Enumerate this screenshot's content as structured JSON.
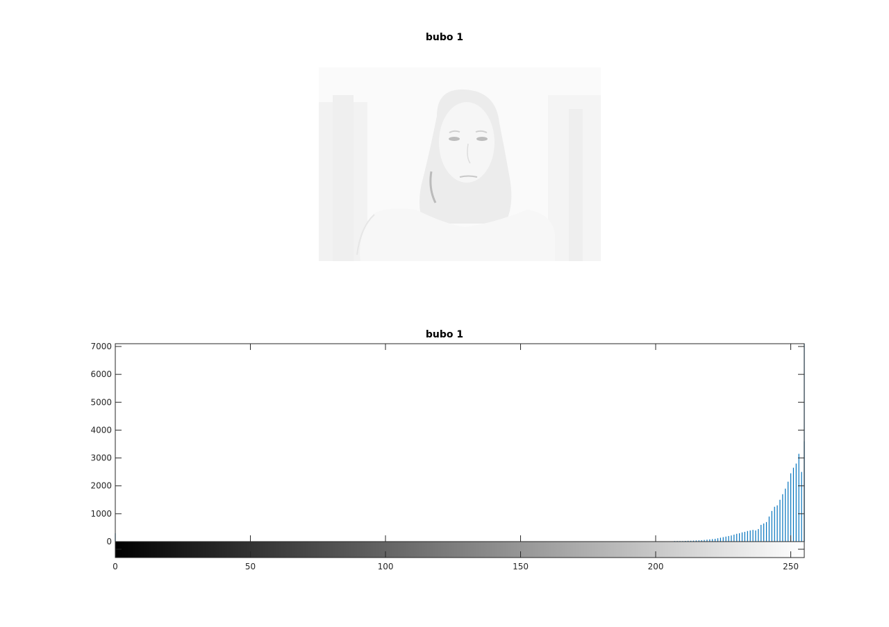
{
  "figure": {
    "image_title": "bubo 1",
    "hist_title": "bubo 1"
  },
  "chart_data": {
    "type": "bar",
    "title": "bubo 1",
    "xlabel": "",
    "ylabel": "",
    "xlim": [
      0,
      255
    ],
    "ylim": [
      -580,
      7100
    ],
    "x_ticks": [
      0,
      50,
      100,
      150,
      200,
      250
    ],
    "y_ticks": [
      0,
      1000,
      2000,
      3000,
      4000,
      5000,
      6000,
      7000
    ],
    "x_tick_labels": [
      "0",
      "50",
      "100",
      "150",
      "200",
      "250"
    ],
    "y_tick_labels": [
      "0",
      "1000",
      "2000",
      "3000",
      "4000",
      "5000",
      "6000",
      "7000"
    ],
    "colorbar": {
      "from": "#000000",
      "to": "#ffffff",
      "range": [
        0,
        255
      ]
    },
    "series": [
      {
        "color": "#0072bd",
        "x": [
          0,
          207,
          208,
          209,
          210,
          211,
          212,
          213,
          214,
          215,
          216,
          217,
          218,
          219,
          220,
          221,
          222,
          223,
          224,
          225,
          226,
          227,
          228,
          229,
          230,
          231,
          232,
          233,
          234,
          235,
          236,
          237,
          238,
          239,
          240,
          241,
          242,
          243,
          244,
          245,
          246,
          247,
          248,
          249,
          250,
          251,
          252,
          253,
          254,
          255
        ],
        "values": [
          300,
          20,
          20,
          20,
          20,
          25,
          30,
          30,
          35,
          40,
          45,
          50,
          60,
          70,
          80,
          90,
          100,
          120,
          140,
          160,
          180,
          200,
          220,
          250,
          280,
          300,
          330,
          350,
          380,
          400,
          420,
          400,
          450,
          600,
          650,
          700,
          900,
          1100,
          1250,
          1300,
          1500,
          1700,
          1900,
          2150,
          2450,
          2650,
          2800,
          3150,
          2500,
          3600
        ]
      },
      {
        "color": "#0072bd",
        "x": [
          255
        ],
        "values": [
          7100
        ]
      }
    ]
  }
}
